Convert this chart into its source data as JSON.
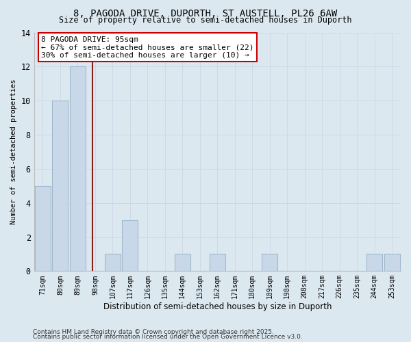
{
  "title": "8, PAGODA DRIVE, DUPORTH, ST AUSTELL, PL26 6AW",
  "subtitle": "Size of property relative to semi-detached houses in Duporth",
  "xlabel": "Distribution of semi-detached houses by size in Duporth",
  "ylabel": "Number of semi-detached properties",
  "categories": [
    "71sqm",
    "80sqm",
    "89sqm",
    "98sqm",
    "107sqm",
    "117sqm",
    "126sqm",
    "135sqm",
    "144sqm",
    "153sqm",
    "162sqm",
    "171sqm",
    "180sqm",
    "189sqm",
    "198sqm",
    "208sqm",
    "217sqm",
    "226sqm",
    "235sqm",
    "244sqm",
    "253sqm"
  ],
  "values": [
    5,
    10,
    12,
    0,
    1,
    3,
    0,
    0,
    1,
    0,
    1,
    0,
    0,
    1,
    0,
    0,
    0,
    0,
    0,
    1,
    1
  ],
  "bar_color": "#c8d8e8",
  "bar_edge_color": "#a0b8cc",
  "bar_linewidth": 0.8,
  "red_line_x": 2.85,
  "red_line_color": "#8b1a1a",
  "annotation_text": "8 PAGODA DRIVE: 95sqm\n← 67% of semi-detached houses are smaller (22)\n30% of semi-detached houses are larger (10) →",
  "annotation_box_facecolor": "#ffffff",
  "annotation_box_edgecolor": "#cc0000",
  "ylim": [
    0,
    14
  ],
  "yticks": [
    0,
    2,
    4,
    6,
    8,
    10,
    12,
    14
  ],
  "grid_color": "#d0d8e8",
  "background_color": "#dce8f0",
  "footer_line1": "Contains HM Land Registry data © Crown copyright and database right 2025.",
  "footer_line2": "Contains public sector information licensed under the Open Government Licence v3.0."
}
